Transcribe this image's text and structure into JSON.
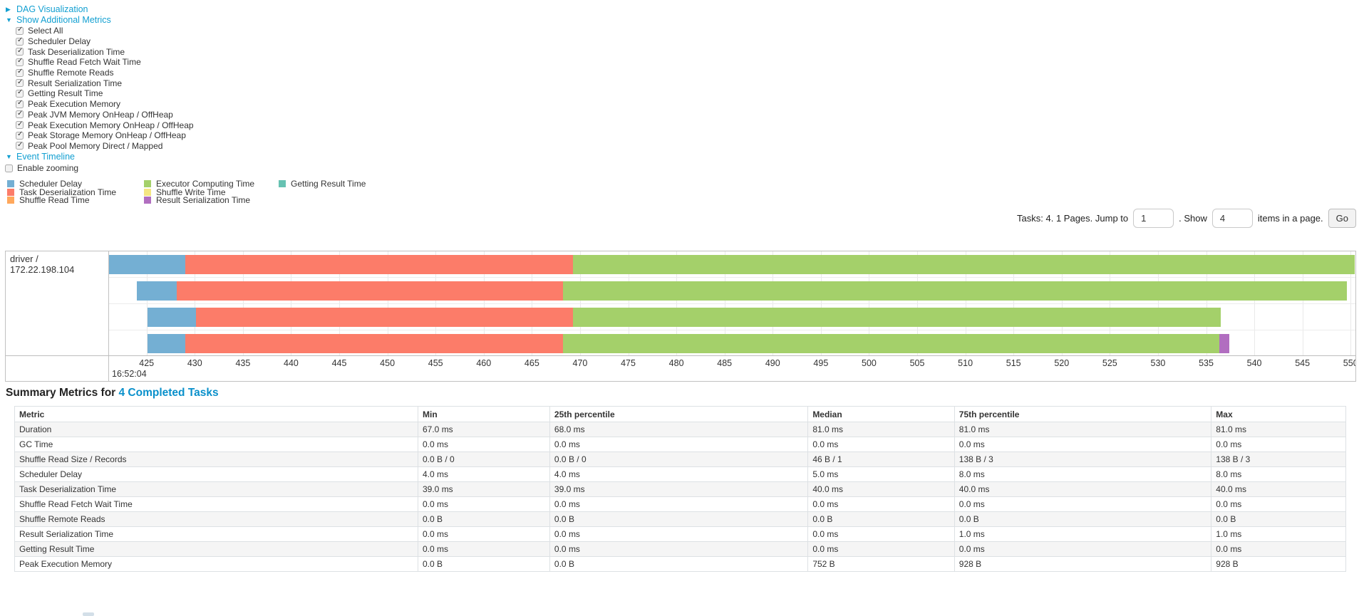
{
  "controls": {
    "dag": {
      "arrow": "▶",
      "label": "DAG Visualization"
    },
    "metrics": {
      "arrow": "▼",
      "label": "Show Additional Metrics"
    },
    "checkboxes": [
      {
        "label": "Select All",
        "checked": true
      },
      {
        "label": "Scheduler Delay",
        "checked": true
      },
      {
        "label": "Task Deserialization Time",
        "checked": true
      },
      {
        "label": "Shuffle Read Fetch Wait Time",
        "checked": true
      },
      {
        "label": "Shuffle Remote Reads",
        "checked": true
      },
      {
        "label": "Result Serialization Time",
        "checked": true
      },
      {
        "label": "Getting Result Time",
        "checked": true
      },
      {
        "label": "Peak Execution Memory",
        "checked": true
      },
      {
        "label": "Peak JVM Memory OnHeap / OffHeap",
        "checked": true
      },
      {
        "label": "Peak Execution Memory OnHeap / OffHeap",
        "checked": true
      },
      {
        "label": "Peak Storage Memory OnHeap / OffHeap",
        "checked": true
      },
      {
        "label": "Peak Pool Memory Direct / Mapped",
        "checked": true
      }
    ],
    "event_timeline": {
      "arrow": "▼",
      "label": "Event Timeline"
    },
    "enable_zooming": {
      "label": "Enable zooming",
      "checked": false
    }
  },
  "legend": {
    "columns": [
      [
        {
          "label": "Scheduler Delay",
          "key": "scheduler_delay"
        },
        {
          "label": "Task Deserialization Time",
          "key": "task_deserialization"
        },
        {
          "label": "Shuffle Read Time",
          "key": "shuffle_read"
        }
      ],
      [
        {
          "label": "Executor Computing Time",
          "key": "executor_computing"
        },
        {
          "label": "Shuffle Write Time",
          "key": "shuffle_write"
        },
        {
          "label": "Result Serialization Time",
          "key": "result_serialization"
        }
      ],
      [
        {
          "label": "Getting Result Time",
          "key": "getting_result"
        }
      ]
    ]
  },
  "pagination": {
    "jump_prefix": "Tasks: 4. 1 Pages. Jump to",
    "page_value": "1",
    "show_label": ". Show",
    "size_value": "4",
    "items_label": "items in a page.",
    "go_label": "Go"
  },
  "chart_data": {
    "type": "timeline",
    "group_label": "driver / 172.22.198.104",
    "time_unit_note": "seconds-fraction axis labels at 16:52:04",
    "first_tick_datetime": "16:52:04",
    "window": {
      "min": 421.1,
      "max": 550.5
    },
    "ticks": [
      425,
      430,
      435,
      440,
      445,
      450,
      455,
      460,
      465,
      470,
      475,
      480,
      485,
      490,
      495,
      500,
      505,
      510,
      515,
      520,
      525,
      530,
      535,
      540,
      545,
      550
    ],
    "colors": {
      "scheduler_delay": "#74AFD3",
      "task_deserialization": "#FC7C69",
      "shuffle_read": "#FFA85C",
      "executor_computing": "#A4D06A",
      "shuffle_write": "#F4E683",
      "result_serialization": "#B16EC0",
      "getting_result": "#67C2B2"
    },
    "tasks": [
      {
        "start": 421.1,
        "segments": [
          [
            "scheduler_delay",
            7.9
          ],
          [
            "task_deserialization",
            40.3
          ],
          [
            "executor_computing",
            81.1
          ]
        ]
      },
      {
        "start": 424.0,
        "segments": [
          [
            "scheduler_delay",
            4.1
          ],
          [
            "task_deserialization",
            40.1
          ],
          [
            "executor_computing",
            81.4
          ]
        ]
      },
      {
        "start": 425.1,
        "segments": [
          [
            "scheduler_delay",
            5.0
          ],
          [
            "task_deserialization",
            39.2
          ],
          [
            "executor_computing",
            67.2
          ]
        ]
      },
      {
        "start": 425.1,
        "segments": [
          [
            "scheduler_delay",
            3.9
          ],
          [
            "task_deserialization",
            39.2
          ],
          [
            "executor_computing",
            68.2
          ],
          [
            "result_serialization",
            1.0
          ]
        ]
      }
    ]
  },
  "summary": {
    "title_prefix": "Summary Metrics for ",
    "title_link": "4 Completed Tasks",
    "table": {
      "headers": [
        "Metric",
        "Min",
        "25th percentile",
        "Median",
        "75th percentile",
        "Max"
      ],
      "col_widths": [
        "30.3%",
        "9.9%",
        "19.4%",
        "11.0%",
        "19.3%",
        "10.1%"
      ],
      "rows": [
        [
          "Duration",
          "67.0 ms",
          "68.0 ms",
          "81.0 ms",
          "81.0 ms",
          "81.0 ms"
        ],
        [
          "GC Time",
          "0.0 ms",
          "0.0 ms",
          "0.0 ms",
          "0.0 ms",
          "0.0 ms"
        ],
        [
          "Shuffle Read Size / Records",
          "0.0 B / 0",
          "0.0 B / 0",
          "46 B / 1",
          "138 B / 3",
          "138 B / 3"
        ],
        [
          "Scheduler Delay",
          "4.0 ms",
          "4.0 ms",
          "5.0 ms",
          "8.0 ms",
          "8.0 ms"
        ],
        [
          "Task Deserialization Time",
          "39.0 ms",
          "39.0 ms",
          "40.0 ms",
          "40.0 ms",
          "40.0 ms"
        ],
        [
          "Shuffle Read Fetch Wait Time",
          "0.0 ms",
          "0.0 ms",
          "0.0 ms",
          "0.0 ms",
          "0.0 ms"
        ],
        [
          "Shuffle Remote Reads",
          "0.0 B",
          "0.0 B",
          "0.0 B",
          "0.0 B",
          "0.0 B"
        ],
        [
          "Result Serialization Time",
          "0.0 ms",
          "0.0 ms",
          "0.0 ms",
          "1.0 ms",
          "1.0 ms"
        ],
        [
          "Getting Result Time",
          "0.0 ms",
          "0.0 ms",
          "0.0 ms",
          "0.0 ms",
          "0.0 ms"
        ],
        [
          "Peak Execution Memory",
          "0.0 B",
          "0.0 B",
          "752 B",
          "928 B",
          "928 B"
        ]
      ]
    }
  }
}
